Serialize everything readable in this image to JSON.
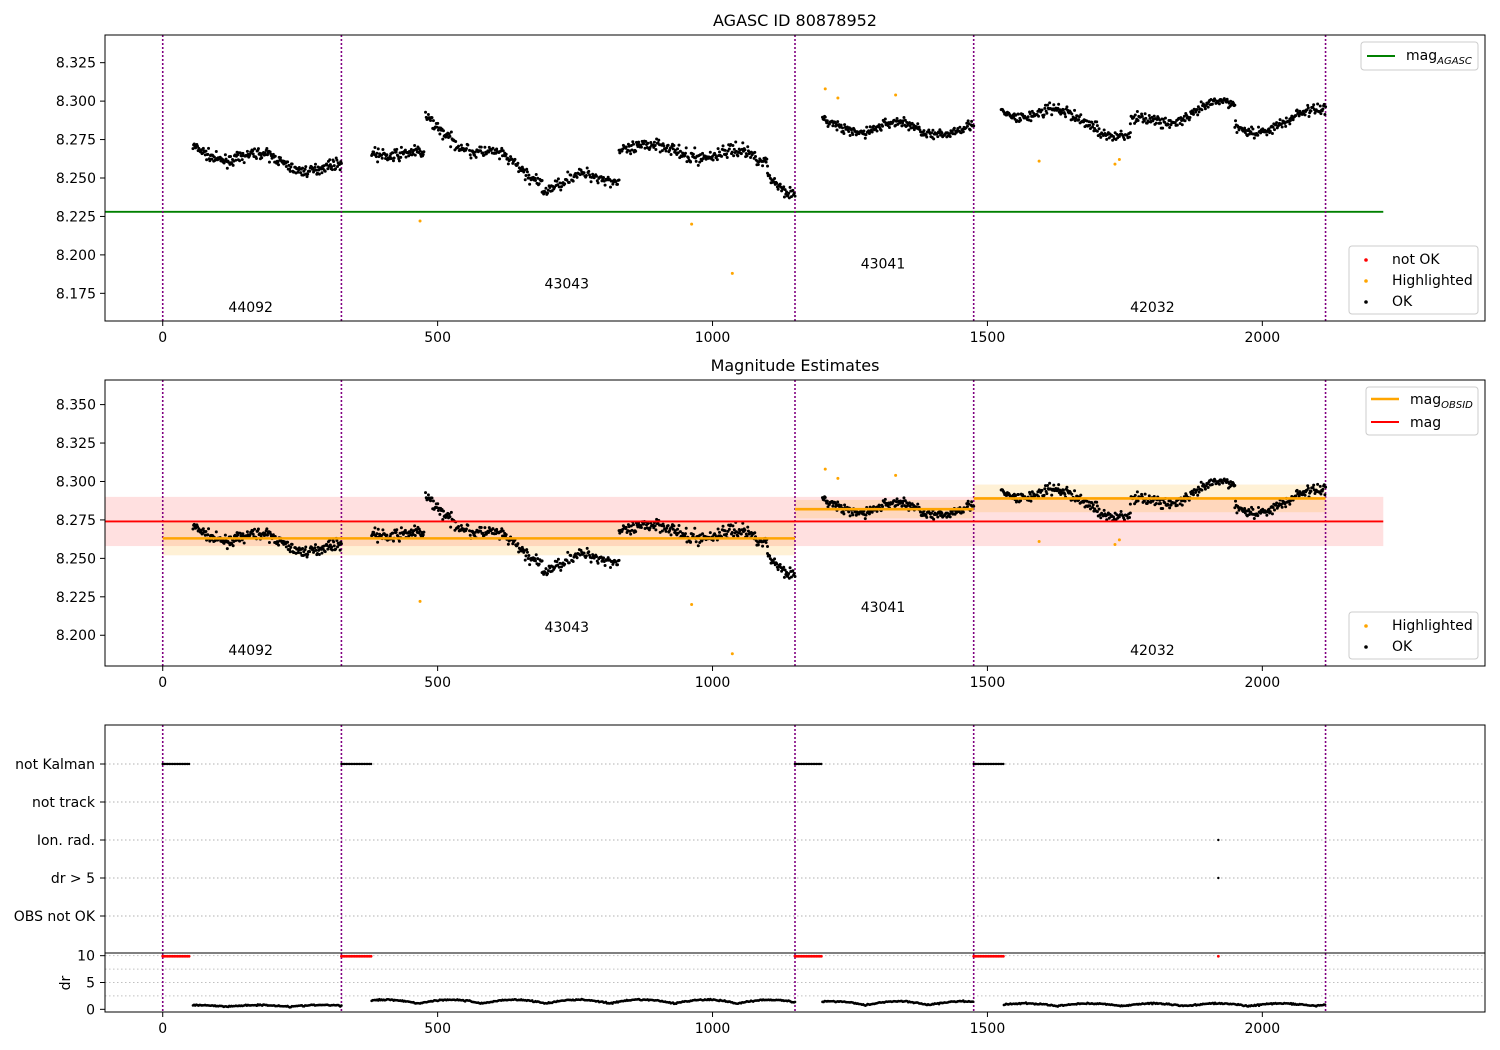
{
  "chart_data": [
    {
      "type": "scatter",
      "title": "AGASC ID 80878952",
      "xlim": [
        -105,
        2405
      ],
      "ylim": [
        8.157,
        8.343
      ],
      "xticks": [
        0,
        500,
        1000,
        1500,
        2000
      ],
      "yticks": [
        8.175,
        8.2,
        8.225,
        8.25,
        8.275,
        8.3,
        8.325
      ],
      "obs_boundaries": [
        0,
        325,
        1150,
        1475,
        2115
      ],
      "obs_labels": [
        {
          "text": "44092",
          "x": 160,
          "y": 8.163
        },
        {
          "text": "43043",
          "x": 735,
          "y": 8.178
        },
        {
          "text": "43041",
          "x": 1310,
          "y": 8.191
        },
        {
          "text": "42032",
          "x": 1800,
          "y": 8.163
        }
      ],
      "mag_agasc": 8.228,
      "mag_agasc_xrange": [
        -105,
        2220
      ],
      "legend_top": [
        {
          "label": "mag",
          "sub": "AGASC",
          "color": "#008000"
        }
      ],
      "legend_bottom": [
        {
          "label": "not OK",
          "color": "#ff0000"
        },
        {
          "label": "Highlighted",
          "color": "#ffa500"
        },
        {
          "label": "OK",
          "color": "#000000"
        }
      ],
      "highlighted": [
        [
          468,
          8.222
        ],
        [
          962,
          8.22
        ],
        [
          1036,
          8.188
        ],
        [
          1205,
          8.308
        ],
        [
          1228,
          8.302
        ],
        [
          1333,
          8.304
        ],
        [
          1594,
          8.261
        ],
        [
          1732,
          8.259
        ],
        [
          1740,
          8.262
        ]
      ],
      "segments": [
        {
          "x": [
            55,
            325
          ],
          "y": [
            8.268,
            8.255
          ],
          "noise": 0.006,
          "n": 230
        },
        {
          "x": [
            380,
            475
          ],
          "y": [
            8.27,
            8.262
          ],
          "noise": 0.007,
          "n": 80
        },
        {
          "x": [
            478,
            555
          ],
          "y": [
            8.286,
            8.272
          ],
          "noise": 0.007,
          "n": 60
        },
        {
          "x": [
            558,
            690
          ],
          "y": [
            8.27,
            8.25
          ],
          "noise": 0.007,
          "n": 100
        },
        {
          "x": [
            690,
            830
          ],
          "y": [
            8.245,
            8.252
          ],
          "noise": 0.007,
          "n": 100
        },
        {
          "x": [
            830,
            960
          ],
          "y": [
            8.272,
            8.265
          ],
          "noise": 0.008,
          "n": 100
        },
        {
          "x": [
            960,
            1100
          ],
          "y": [
            8.268,
            8.262
          ],
          "noise": 0.008,
          "n": 110
        },
        {
          "x": [
            1100,
            1150
          ],
          "y": [
            8.255,
            8.24
          ],
          "noise": 0.006,
          "n": 40
        },
        {
          "x": [
            1200,
            1475
          ],
          "y": [
            8.284,
            8.281
          ],
          "noise": 0.006,
          "n": 220
        },
        {
          "x": [
            1525,
            1700
          ],
          "y": [
            8.294,
            8.288
          ],
          "noise": 0.007,
          "n": 140
        },
        {
          "x": [
            1700,
            1760
          ],
          "y": [
            8.283,
            8.274
          ],
          "noise": 0.006,
          "n": 40
        },
        {
          "x": [
            1760,
            1950
          ],
          "y": [
            8.284,
            8.298
          ],
          "noise": 0.006,
          "n": 150
        },
        {
          "x": [
            1950,
            2050
          ],
          "y": [
            8.284,
            8.283
          ],
          "noise": 0.006,
          "n": 80
        },
        {
          "x": [
            2050,
            2115
          ],
          "y": [
            8.285,
            8.298
          ],
          "noise": 0.007,
          "n": 55
        }
      ]
    },
    {
      "type": "scatter",
      "title": "Magnitude Estimates",
      "xlim": [
        -105,
        2405
      ],
      "ylim": [
        8.18,
        8.366
      ],
      "xticks": [
        0,
        500,
        1000,
        1500,
        2000
      ],
      "yticks": [
        8.2,
        8.225,
        8.25,
        8.275,
        8.3,
        8.325,
        8.35
      ],
      "obs_boundaries": [
        0,
        325,
        1150,
        1475,
        2115
      ],
      "obs_labels": [
        {
          "text": "44092",
          "x": 160,
          "y": 8.187
        },
        {
          "text": "43043",
          "x": 735,
          "y": 8.202
        },
        {
          "text": "43041",
          "x": 1310,
          "y": 8.215
        },
        {
          "text": "42032",
          "x": 1800,
          "y": 8.187
        }
      ],
      "mag": 8.274,
      "mag_band": [
        8.258,
        8.29
      ],
      "mag_xrange": [
        -105,
        2220
      ],
      "mag_obsid": [
        {
          "x": [
            0,
            1150
          ],
          "y": 8.263,
          "band": [
            8.252,
            8.274
          ]
        },
        {
          "x": [
            1150,
            1475
          ],
          "y": 8.282,
          "band": [
            8.276,
            8.288
          ]
        },
        {
          "x": [
            1475,
            2115
          ],
          "y": 8.289,
          "band": [
            8.28,
            8.298
          ]
        }
      ],
      "legend_top": [
        {
          "label": "mag",
          "sub": "OBSID",
          "color": "#ffa500"
        },
        {
          "label": "mag",
          "sub": "",
          "color": "#ff0000"
        }
      ],
      "legend_bottom": [
        {
          "label": "Highlighted",
          "color": "#ffa500"
        },
        {
          "label": "OK",
          "color": "#000000"
        }
      ]
    },
    {
      "type": "scatter",
      "xlim": [
        -105,
        2405
      ],
      "xticks": [
        0,
        500,
        1000,
        1500,
        2000
      ],
      "flag_labels": [
        "not Kalman",
        "not track",
        "Ion. rad.",
        "dr > 5",
        "OBS not OK"
      ],
      "not_kalman_ranges": [
        [
          0,
          50
        ],
        [
          325,
          380
        ],
        [
          1150,
          1200
        ],
        [
          1475,
          1530
        ]
      ],
      "ion_rad_x": [
        1920
      ],
      "dr_gt5_x": [
        1920
      ],
      "dr": {
        "ylim": [
          -0.5,
          10.5
        ],
        "yticks": [
          0,
          5,
          10
        ],
        "ylabel": "dr",
        "red_x": [
          [
            0,
            50
          ],
          [
            325,
            380
          ],
          [
            1150,
            1200
          ],
          [
            1475,
            1530
          ]
        ],
        "red_single": [
          1920
        ],
        "red_value": 9.9,
        "segments": [
          {
            "x": [
              55,
              325
            ],
            "base": 0.5,
            "amp": 0.3
          },
          {
            "x": [
              380,
              1150
            ],
            "base": 1.1,
            "amp": 0.7
          },
          {
            "x": [
              1200,
              1475
            ],
            "base": 0.8,
            "amp": 0.7
          },
          {
            "x": [
              1530,
              2115
            ],
            "base": 0.6,
            "amp": 0.5
          }
        ]
      }
    }
  ],
  "colors": {
    "ok": "#000000",
    "highlighted": "#ffa500",
    "not_ok": "#ff0000",
    "boundary": "#800080",
    "agasc_line": "#008000"
  }
}
